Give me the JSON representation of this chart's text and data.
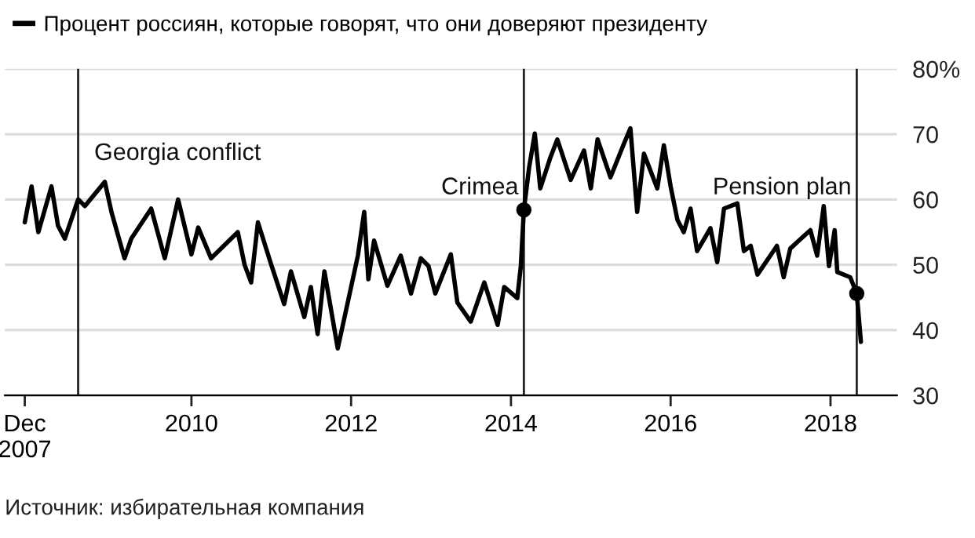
{
  "chart_data": {
    "type": "line",
    "annotations": [
      "Источник: избирательная компания"
    ],
    "legend": "top left",
    "grid": "y",
    "ylim": [
      30,
      80
    ],
    "yticks": [
      30,
      40,
      50,
      60,
      70,
      {
        "value": 80,
        "label": "80%"
      }
    ],
    "xlim": [
      "2007-09",
      "2018-11"
    ],
    "xticks": [
      {
        "value": "2007-12",
        "label": "Dec\n2007"
      },
      {
        "value": "2010",
        "label": "2010"
      },
      {
        "value": "2012",
        "label": "2012"
      },
      {
        "value": "2014",
        "label": "2014"
      },
      {
        "value": "2016",
        "label": "2016"
      },
      {
        "value": "2018",
        "label": "2018"
      }
    ],
    "ref_lines": [
      {
        "axis": "x",
        "value": "2008-08",
        "label": "Georgia conflict",
        "color": "#222222"
      },
      {
        "axis": "x",
        "value": "2014-03",
        "label": "Crimea",
        "color": "#222222"
      },
      {
        "axis": "x",
        "value": "2018-05",
        "label": "Pension plan",
        "color": "#222222"
      }
    ],
    "series": [
      {
        "name": "Процент россиян, которые говорят, что они доверяют президенту",
        "color": "#000000",
        "marker": "none",
        "x": [
          "2007-12",
          "2008-01",
          "2008-02",
          "2008-04",
          "2008-05",
          "2008-06",
          "2008-08",
          "2008-09",
          "2008-12",
          "2009-01",
          "2009-03",
          "2009-04",
          "2009-07",
          "2009-09",
          "2009-11",
          "2010-01",
          "2010-02",
          "2010-04",
          "2010-08",
          "2010-09",
          "2010-10",
          "2010-11",
          "2011-01",
          "2011-03",
          "2011-04",
          "2011-06",
          "2011-07",
          "2011-08",
          "2011-09",
          "2011-11",
          "2012-01",
          "2012-02",
          "2012-03-01",
          "2012-03-20",
          "2012-04-15",
          "2012-06-15",
          "2012-08-15",
          "2012-10-01",
          "2012-11-15",
          "2012-12-20",
          "2013-01-20",
          "2013-04",
          "2013-05",
          "2013-07",
          "2013-09",
          "2013-11",
          "2013-12",
          "2014-01-30",
          "2014-02-15",
          "2014-03-01",
          "2014-03-25",
          "2014-04-20",
          "2014-05-15",
          "2014-07",
          "2014-08",
          "2014-10",
          "2014-12",
          "2015-01",
          "2015-02",
          "2015-04",
          "2015-06",
          "2015-07",
          "2015-08",
          "2015-09",
          "2015-11",
          "2015-12",
          "2016-01",
          "2016-02",
          "2016-03",
          "2016-04",
          "2016-05",
          "2016-07",
          "2016-08",
          "2016-09",
          "2016-11",
          "2016-12",
          "2017-01",
          "2017-02",
          "2017-05",
          "2017-06",
          "2017-07",
          "2017-10",
          "2017-11",
          "2017-12-01",
          "2017-12-25",
          "2018-01-20",
          "2018-02",
          "2018-04",
          "2018-05-01",
          "2018-05-20"
        ],
        "values": [
          56.5,
          62,
          55,
          62,
          56,
          54,
          60,
          59,
          62.7,
          58,
          51,
          54,
          58.6,
          51,
          60,
          51.6,
          55.7,
          51,
          55,
          50,
          47.3,
          56.5,
          50,
          44,
          49,
          42,
          46.6,
          39.4,
          49,
          37.2,
          46.6,
          51.4,
          58.1,
          47.8,
          53.7,
          46.8,
          51.4,
          45.6,
          51,
          49.8,
          45.6,
          51.6,
          44.2,
          41.3,
          47.3,
          40.8,
          46.6,
          44.9,
          49.8,
          58.4,
          64.9,
          70.1,
          61.7,
          66.5,
          69.2,
          63,
          67.5,
          61.7,
          69.2,
          63.4,
          68.5,
          70.9,
          58.1,
          67,
          61.7,
          68.3,
          62,
          56.9,
          55,
          58.6,
          52.1,
          55.6,
          50.4,
          58.6,
          59.4,
          52.1,
          52.9,
          48.5,
          52.9,
          48.1,
          52.5,
          55.3,
          51.4,
          59,
          49.8,
          55.3,
          48.9,
          48.1,
          45.6,
          38.2
        ]
      },
      {
        "type": "scatter",
        "color": "#000000",
        "marker": "circle",
        "x": [
          "2014-03-01",
          "2018-05-01"
        ],
        "values": [
          58.4,
          45.6
        ]
      }
    ]
  }
}
